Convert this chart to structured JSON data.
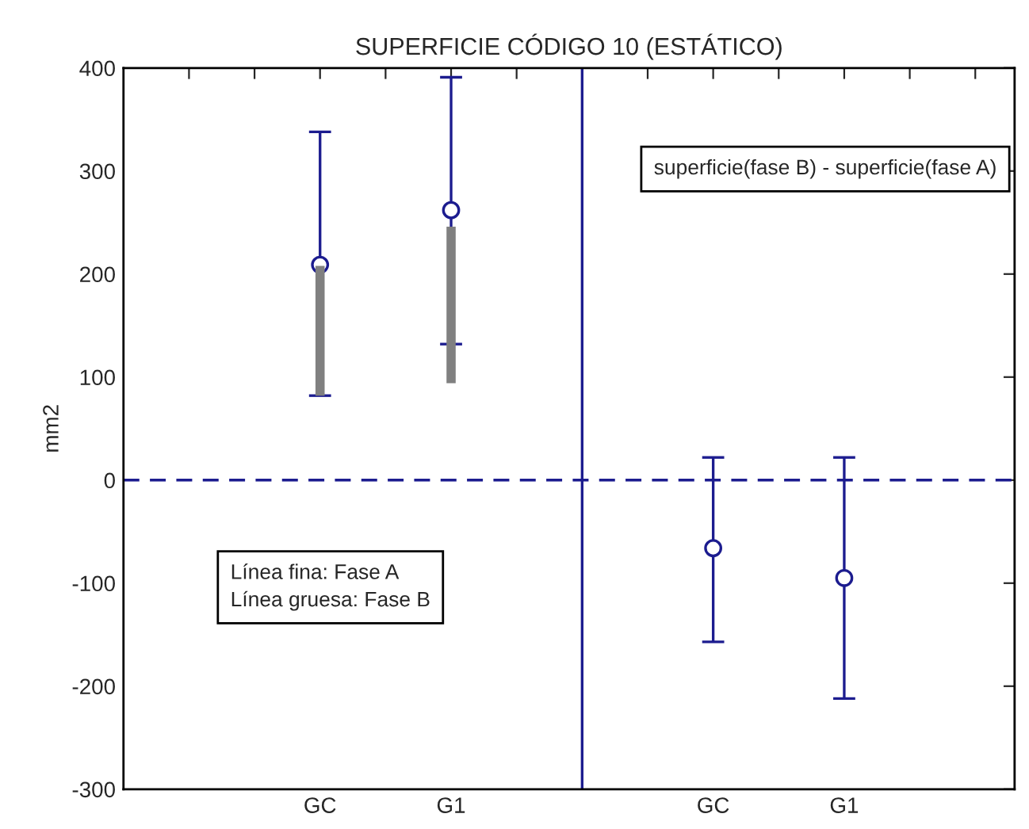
{
  "chart_data": {
    "type": "scatter",
    "title": "SUPERFICIE CÓDIGO 10 (ESTÁTICO)",
    "ylabel": "mm2",
    "categories": [
      null,
      null,
      "GC",
      null,
      "G1",
      null,
      null,
      null,
      "GC",
      null,
      "G1",
      null,
      null
    ],
    "ylim": [
      -300,
      400
    ],
    "yticks": [
      -300,
      -200,
      -100,
      0,
      100,
      200,
      300,
      400
    ],
    "grid": false,
    "marker": "circle",
    "series": [
      {
        "type": "bar",
        "color": "#808080",
        "base": [
          null,
          null,
          82,
          null,
          94,
          null,
          null,
          null,
          null,
          null,
          null,
          null,
          null
        ],
        "values": [
          null,
          null,
          126,
          null,
          152,
          null,
          null,
          null,
          null,
          null,
          null,
          null,
          null
        ]
      },
      {
        "color": "#1c1c8f",
        "values": [
          null,
          null,
          209,
          null,
          262,
          null,
          null,
          null,
          null,
          null,
          null,
          null,
          null
        ],
        "errors": [
          null,
          null,
          [
            82,
            338
          ],
          null,
          [
            132,
            391
          ],
          null,
          null,
          null,
          null,
          null,
          null,
          null,
          null
        ]
      },
      {
        "color": "#1c1c8f",
        "values": [
          null,
          null,
          null,
          null,
          null,
          null,
          null,
          null,
          -66,
          null,
          -95,
          null,
          null
        ],
        "errors": [
          null,
          null,
          null,
          null,
          null,
          null,
          null,
          null,
          [
            -157,
            22
          ],
          null,
          [
            -212,
            22
          ],
          null,
          null
        ]
      }
    ],
    "ref_lines": [
      {
        "axis": "y",
        "value": 0,
        "color": "#1c1c8f",
        "line_style": "dashed"
      }
    ],
    "annotations": [
      "superficie(fase B) - superficie(fase A)",
      "Línea fina: Fase A\nLínea gruesa: Fase B"
    ]
  }
}
